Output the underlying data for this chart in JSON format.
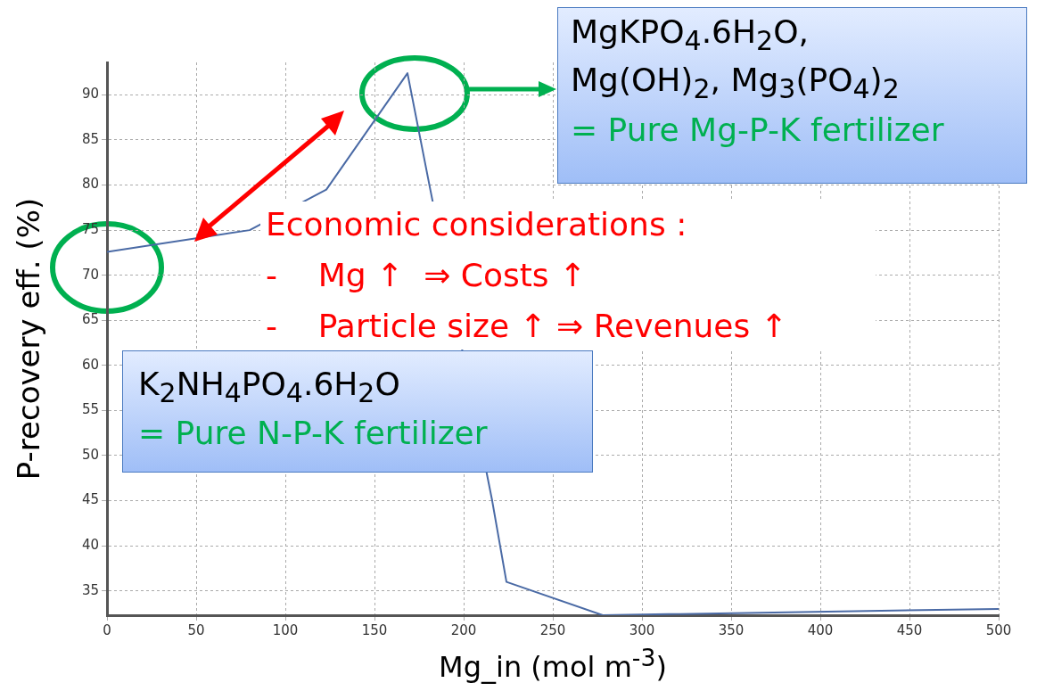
{
  "chart_data": {
    "type": "line",
    "xlabel": "Mg_in (mol m$^{-3}$)",
    "ylabel": "P-recovery eff. (%)",
    "x": [
      0,
      80,
      123,
      168.5,
      181,
      216,
      224,
      278,
      500
    ],
    "series": [
      {
        "color": "#4a6aa5",
        "values": [
          72.6,
          75.0,
          79.5,
          92.4,
          79.8,
          45.0,
          36.0,
          32.3,
          33.0
        ]
      }
    ],
    "xlim": [
      0,
      500
    ],
    "xticks": [
      0,
      50,
      100,
      150,
      200,
      250,
      300,
      350,
      400,
      450,
      500
    ],
    "ylim": [
      32.3,
      93.6
    ],
    "yticks": [
      35,
      40,
      45,
      50,
      55,
      60,
      65,
      70,
      75,
      80,
      85,
      90
    ],
    "grid": true,
    "legend": false,
    "marker": "none",
    "line_style": "solid",
    "annotations": [
      "MgKPO$_{4}$.6H$_{2}$O,",
      "Mg(OH)$_{2}$, Mg$_{3}$(PO$_{4}$)$_{2}$",
      "= Pure Mg-P-K fertilizer",
      "Economic considerations :",
      "-    Mg ↑  ⇒ Costs ↑",
      "-    Particle size ↑ ⇒ Revenues ↑",
      "K$_{2}$NH$_{4}$PO$_{4}$.6H$_{2}$O",
      "= Pure N-P-K fertilizer"
    ]
  }
}
